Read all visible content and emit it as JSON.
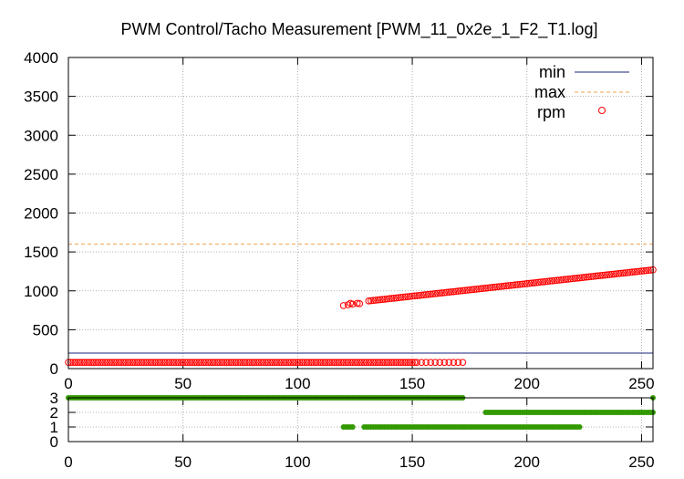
{
  "chart_data": [
    {
      "type": "scatter",
      "title": "PWM Control/Tacho Measurement [PWM_11_0x2e_1_F2_T1.log]",
      "xlabel": "",
      "ylabel": "",
      "xlim": [
        0,
        255
      ],
      "ylim": [
        0,
        4000
      ],
      "xticks": [
        0,
        50,
        100,
        150,
        200,
        250
      ],
      "yticks": [
        0,
        500,
        1000,
        1500,
        2000,
        2500,
        3000,
        3500,
        4000
      ],
      "grid": true,
      "legend_position": "top-right",
      "series": [
        {
          "name": "min",
          "style": "line",
          "color": "#1a237e",
          "y": 200
        },
        {
          "name": "max",
          "style": "dashed-line",
          "color": "#f0a04b",
          "y": 1600
        },
        {
          "name": "rpm",
          "style": "open-circle",
          "color": "#ff0000",
          "baseline": {
            "x_range": [
              0,
              172
            ],
            "y": 80
          },
          "ramp_start": [
            [
              120,
              810
            ],
            [
              122,
              820
            ],
            [
              123,
              840
            ],
            [
              124,
              830
            ],
            [
              126,
              840
            ],
            [
              127,
              835
            ]
          ],
          "ramp": {
            "x_range": [
              131,
              255
            ],
            "y_range": [
              870,
              1270
            ]
          }
        }
      ]
    },
    {
      "type": "scatter",
      "xlabel": "",
      "ylabel": "",
      "xlim": [
        0,
        255
      ],
      "ylim": [
        0,
        3
      ],
      "xticks": [
        0,
        50,
        100,
        150,
        200,
        250
      ],
      "yticks": [
        0,
        1,
        2,
        3
      ],
      "grid": true,
      "series": [
        {
          "color": "#339900",
          "y": 3,
          "x_ranges": [
            [
              0,
              172
            ],
            [
              255,
              255
            ]
          ]
        },
        {
          "color": "#339900",
          "y": 2,
          "x_ranges": [
            [
              182,
              255
            ]
          ]
        },
        {
          "color": "#339900",
          "y": 1,
          "x_ranges": [
            [
              120,
              124
            ],
            [
              129,
              223
            ]
          ]
        }
      ]
    }
  ]
}
